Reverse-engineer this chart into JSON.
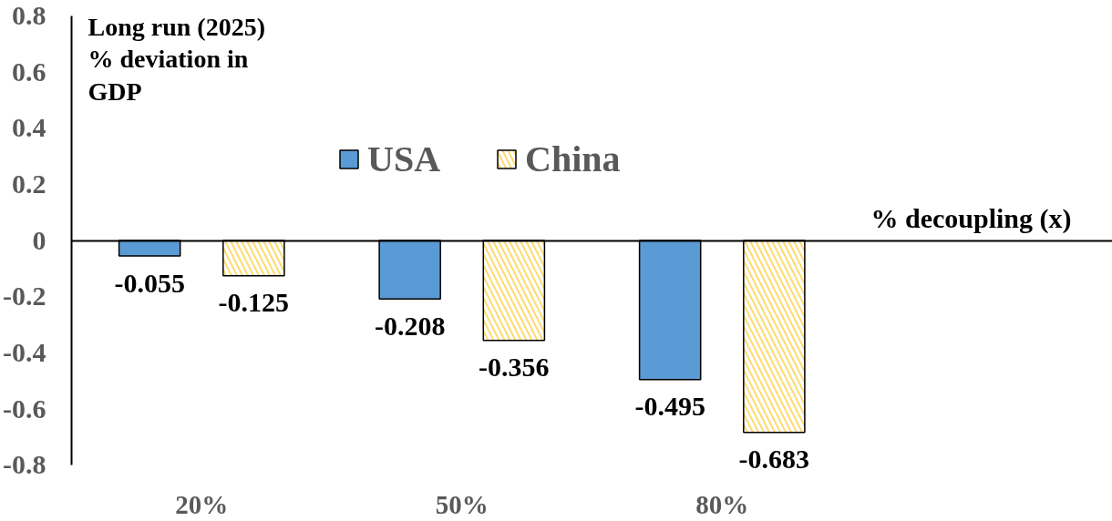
{
  "chart_data": {
    "type": "bar",
    "ylabel": "Long run (2025) % deviation in GDP",
    "xlabel": "% decoupling (x)",
    "categories": [
      "20%",
      "50%",
      "80%",
      null
    ],
    "series": [
      {
        "name": "USA",
        "color": "#5b9bd5",
        "values": [
          -0.055,
          -0.208,
          -0.495,
          null
        ]
      },
      {
        "name": "China",
        "color": "#ffd966",
        "values": [
          -0.125,
          -0.356,
          -0.683,
          null
        ]
      }
    ],
    "ylim": [
      -0.8,
      0.8
    ],
    "yticks": [
      -0.8,
      -0.6,
      -0.4,
      -0.2,
      0,
      0.2,
      0.4,
      0.6,
      0.8
    ],
    "data_labels": true,
    "legend": "top"
  }
}
